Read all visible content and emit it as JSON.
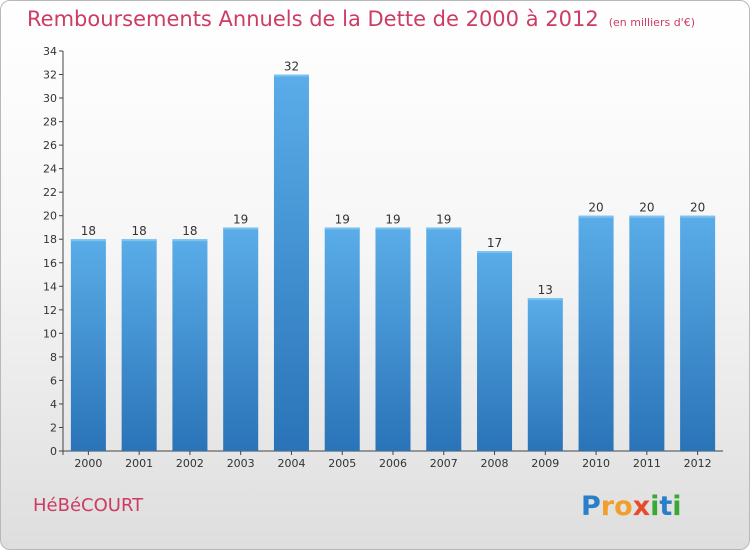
{
  "title": "Remboursements Annuels de la Dette de 2000 à 2012",
  "unit_note": "(en milliers d'€)",
  "commune": "HéBéCOURT",
  "brand": {
    "letters": [
      "P",
      "r",
      "o",
      "x",
      "i",
      "t",
      "i"
    ],
    "colors": [
      "#2a7fc9",
      "#f0a02a",
      "#f0a02a",
      "#e84b2c",
      "#3aa836",
      "#2a7fc9",
      "#3aa836"
    ]
  },
  "colors": {
    "title": "#cd3c63",
    "bar": "#4a9fe0",
    "bar_dark": "#2a73b8"
  },
  "chart_data": {
    "type": "bar",
    "title": "Remboursements Annuels de la Dette de 2000 à 2012",
    "categories": [
      "2000",
      "2001",
      "2002",
      "2003",
      "2004",
      "2005",
      "2006",
      "2007",
      "2008",
      "2009",
      "2010",
      "2011",
      "2012"
    ],
    "values": [
      18,
      18,
      18,
      19,
      32,
      19,
      19,
      19,
      17,
      13,
      20,
      20,
      20
    ],
    "ylim": [
      0,
      34
    ],
    "yticks": [
      0,
      2,
      4,
      6,
      8,
      10,
      12,
      14,
      16,
      18,
      20,
      22,
      24,
      26,
      28,
      30,
      32,
      34
    ],
    "grid": false
  }
}
